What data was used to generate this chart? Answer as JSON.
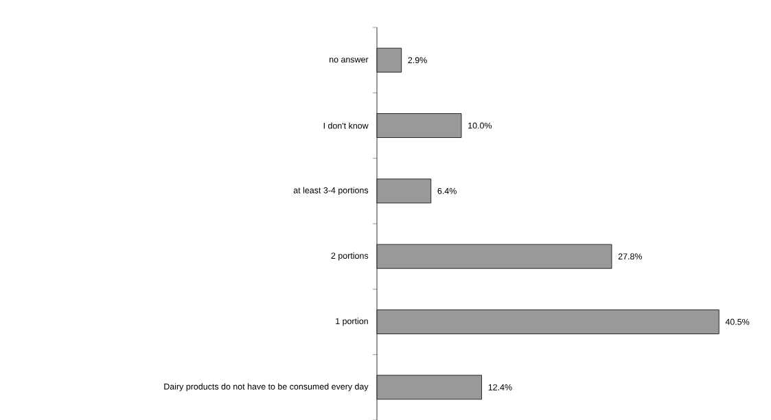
{
  "chart_data": {
    "type": "bar",
    "orientation": "horizontal",
    "categories": [
      "no answer",
      "I don't know",
      "at least 3-4 portions",
      "2 portions",
      "1 portion",
      "Dairy products do not have to be consumed every day"
    ],
    "values": [
      2.9,
      10.0,
      6.4,
      27.8,
      40.5,
      12.4
    ],
    "value_labels": [
      "2.9%",
      "10.0%",
      "6.4%",
      "27.8%",
      "40.5%",
      "12.4%"
    ],
    "color": "#999999",
    "tick_labels": "y"
  }
}
